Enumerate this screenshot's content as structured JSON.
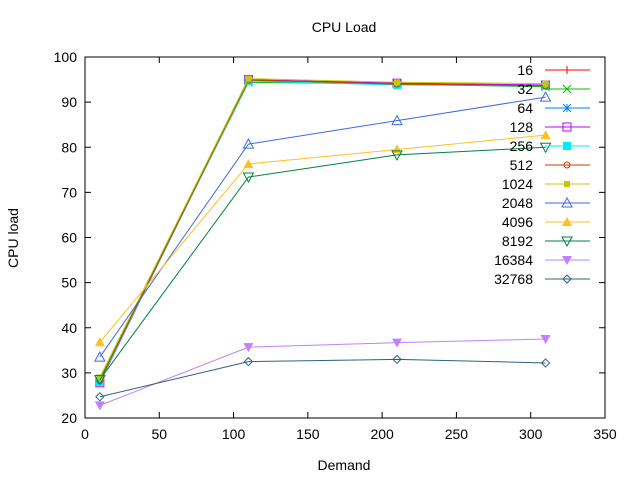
{
  "chart_data": {
    "type": "line",
    "title": "CPU Load",
    "xlabel": "Demand",
    "ylabel": "CPU load",
    "xlim": [
      0,
      350
    ],
    "ylim": [
      20,
      100
    ],
    "xticks": [
      0,
      50,
      100,
      150,
      200,
      250,
      300,
      350
    ],
    "yticks": [
      20,
      30,
      40,
      50,
      60,
      70,
      80,
      90,
      100
    ],
    "grid": false,
    "legend": "top-right",
    "x": [
      10,
      110,
      210,
      310
    ],
    "series": [
      {
        "name": "16",
        "color": "#ff0000",
        "marker": "plus",
        "values": [
          28.5,
          94.9,
          94.2,
          93.6
        ]
      },
      {
        "name": "32",
        "color": "#00c000",
        "marker": "cross",
        "values": [
          28.7,
          94.4,
          94.0,
          93.4
        ]
      },
      {
        "name": "64",
        "color": "#0080ff",
        "marker": "star",
        "values": [
          28.2,
          94.8,
          94.1,
          93.7
        ]
      },
      {
        "name": "128",
        "color": "#c000ff",
        "marker": "square",
        "values": [
          27.8,
          95.0,
          94.2,
          93.8
        ]
      },
      {
        "name": "256",
        "color": "#00eeee",
        "marker": "filled-square",
        "values": [
          28.0,
          94.7,
          93.8,
          93.6
        ]
      },
      {
        "name": "512",
        "color": "#c04000",
        "marker": "circle",
        "values": [
          28.3,
          94.9,
          94.0,
          93.6
        ]
      },
      {
        "name": "1024",
        "color": "#c8c800",
        "marker": "filled-circle",
        "values": [
          29.0,
          95.2,
          94.4,
          94.1
        ]
      },
      {
        "name": "2048",
        "color": "#4169e1",
        "marker": "triangle",
        "values": [
          33.5,
          80.7,
          85.9,
          91.1
        ]
      },
      {
        "name": "4096",
        "color": "#ffc020",
        "marker": "filled-triangle",
        "values": [
          36.8,
          76.3,
          79.5,
          82.7
        ]
      },
      {
        "name": "8192",
        "color": "#008040",
        "marker": "inv-triangle",
        "values": [
          28.5,
          73.4,
          78.3,
          80.0
        ]
      },
      {
        "name": "16384",
        "color": "#c080ff",
        "marker": "filled-inv-triangle",
        "values": [
          22.8,
          35.7,
          36.7,
          37.5
        ]
      },
      {
        "name": "32768",
        "color": "#306080",
        "marker": "diamond",
        "values": [
          24.7,
          32.5,
          33.0,
          32.2
        ]
      }
    ]
  }
}
